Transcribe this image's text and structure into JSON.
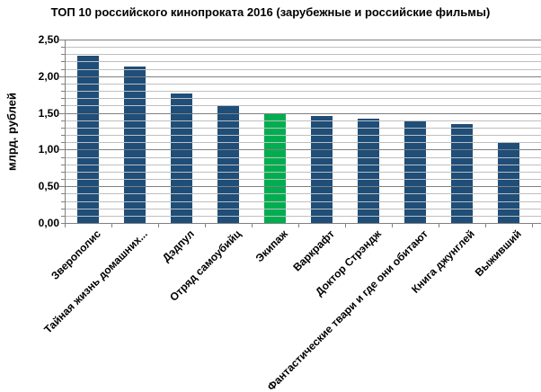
{
  "chart_data": {
    "type": "bar",
    "title": "ТОП 10 российского кинопроката 2016 (зарубежные и российские фильмы)",
    "xlabel": "",
    "ylabel": "млрд. рублей",
    "categories": [
      "Зверополис",
      "Тайная жизнь домашних...",
      "Дэдпул",
      "Отряд самоубийц",
      "Экипаж",
      "Варкрафт",
      "Доктор Стрэндж",
      "Фантастические твари и где они обитают",
      "Книга джунглей",
      "Выживший"
    ],
    "values": [
      2.28,
      2.13,
      1.76,
      1.61,
      1.5,
      1.46,
      1.42,
      1.39,
      1.35,
      1.1
    ],
    "ylim": [
      0,
      2.5
    ],
    "y_major_step": 0.5,
    "y_minor_step": 0.1,
    "y_tick_labels": [
      "0,00",
      "0,50",
      "1,00",
      "1,50",
      "2,00",
      "2,50"
    ],
    "grid": "horizontal major+minor",
    "legend_position": "none",
    "bar_color": "#1F4E79",
    "highlight_color": "#00AE50",
    "highlight_index": 4,
    "highlighted_category": "Экипаж"
  }
}
